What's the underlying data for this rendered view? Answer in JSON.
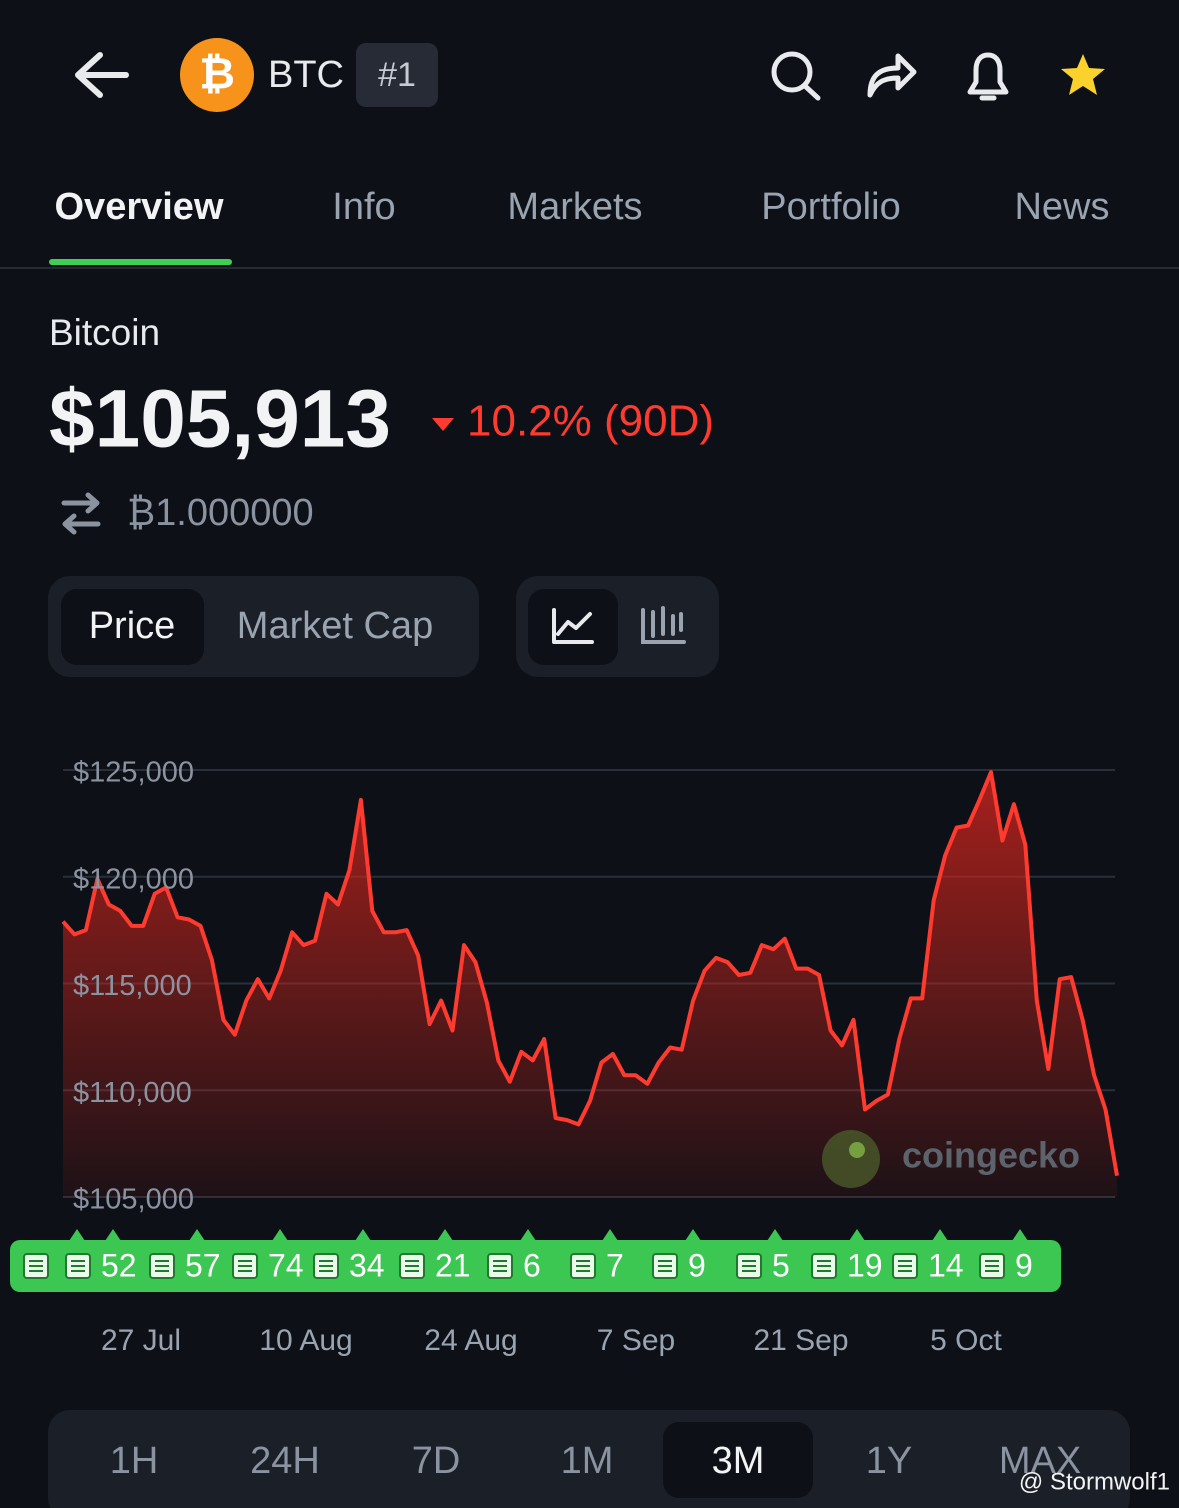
{
  "header": {
    "ticker": "BTC",
    "rank": "#1"
  },
  "tabs": [
    "Overview",
    "Info",
    "Markets",
    "Portfolio",
    "News"
  ],
  "coin": {
    "name": "Bitcoin",
    "price": "$105,913",
    "change": "10.2% (90D)",
    "btc_price": "₿1.000000"
  },
  "chart_toggle": [
    "Price",
    "Market Cap"
  ],
  "chart_data": {
    "type": "area",
    "series": [
      {
        "color": "#ff3b30",
        "values": [
          117900,
          117300,
          117500,
          119900,
          118700,
          118400,
          117700,
          117700,
          119200,
          119500,
          118100,
          118000,
          117700,
          116100,
          113300,
          112600,
          114200,
          115200,
          114300,
          115600,
          117400,
          116800,
          117000,
          119200,
          118700,
          120300,
          123600,
          118400,
          117400,
          117400,
          117500,
          116300,
          113100,
          114200,
          112800,
          116800,
          116000,
          114100,
          111400,
          110400,
          111800,
          111400,
          112400,
          108700,
          108600,
          108400,
          109500,
          111300,
          111700,
          110700,
          110700,
          110300,
          111300,
          112000,
          111900,
          114200,
          115600,
          116200,
          116000,
          115400,
          115500,
          116800,
          116600,
          117100,
          115700,
          115700,
          115400,
          112800,
          112100,
          113300,
          109100,
          109500,
          109800,
          112400,
          114300,
          114300,
          118900,
          121000,
          122300,
          122400,
          123600,
          124900,
          121700,
          123400,
          121500,
          114200,
          111000,
          115200,
          115300,
          113300,
          110700,
          109100,
          106000
        ]
      }
    ],
    "ylim": [
      105000,
      125000
    ],
    "yticks": [
      {
        "value": 125000,
        "label": "$125,000"
      },
      {
        "value": 120000,
        "label": "$120,000"
      },
      {
        "value": 115000,
        "label": "$115,000"
      },
      {
        "value": 110000,
        "label": "$110,000"
      },
      {
        "value": 105000,
        "label": "$105,000"
      }
    ],
    "grid": true,
    "xtick_labels": [
      "27 Jul",
      "10 Aug",
      "24 Aug",
      "7 Sep",
      "21 Sep",
      "5 Oct"
    ],
    "watermark": "coingecko"
  },
  "news_counts": [
    52,
    57,
    74,
    34,
    21,
    6,
    7,
    9,
    5,
    19,
    14,
    9
  ],
  "ranges": [
    "1H",
    "24H",
    "7D",
    "1M",
    "3M",
    "1Y",
    "MAX"
  ],
  "selected_range": "3M",
  "credit": "@ Stormwolf1"
}
